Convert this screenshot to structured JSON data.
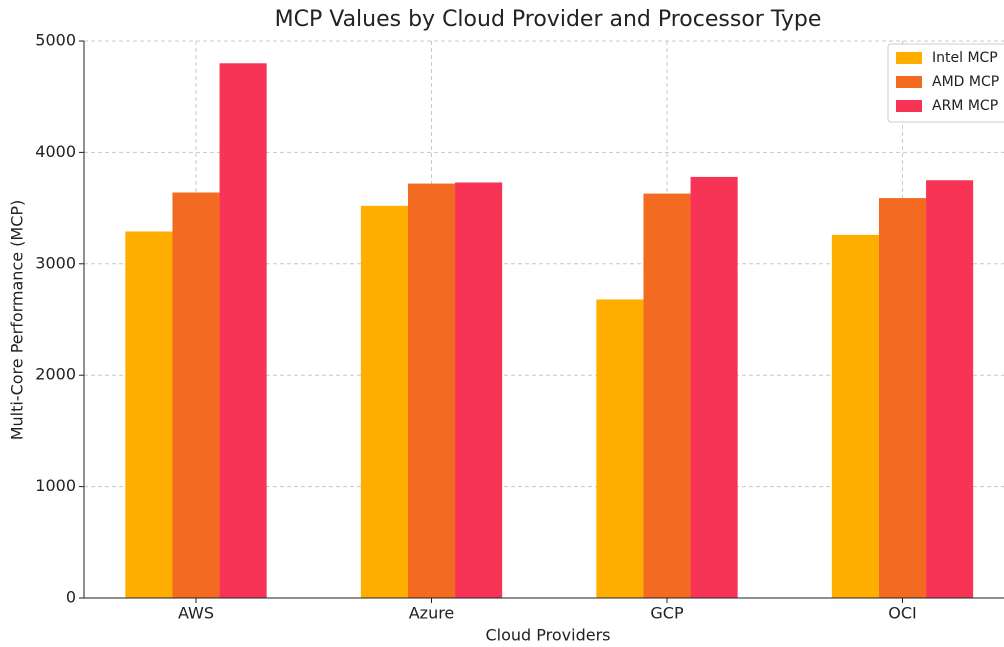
{
  "chart_data": {
    "type": "bar",
    "title": "MCP Values by Cloud Provider and Processor Type",
    "xlabel": "Cloud Providers",
    "ylabel": "Multi-Core Performance (MCP)",
    "categories": [
      "AWS",
      "Azure",
      "GCP",
      "OCI"
    ],
    "series": [
      {
        "name": "Intel MCP",
        "color": "#ffae00",
        "values": [
          3290,
          3520,
          2680,
          3260
        ]
      },
      {
        "name": "AMD MCP",
        "color": "#f26b21",
        "values": [
          3640,
          3720,
          3630,
          3590
        ]
      },
      {
        "name": "ARM MCP",
        "color": "#f73455",
        "values": [
          4800,
          3730,
          3780,
          3750
        ]
      }
    ],
    "ylim": [
      0,
      5000
    ],
    "yticks": [
      0,
      1000,
      2000,
      3000,
      4000,
      5000
    ],
    "grid": true,
    "legend": "upper right"
  }
}
